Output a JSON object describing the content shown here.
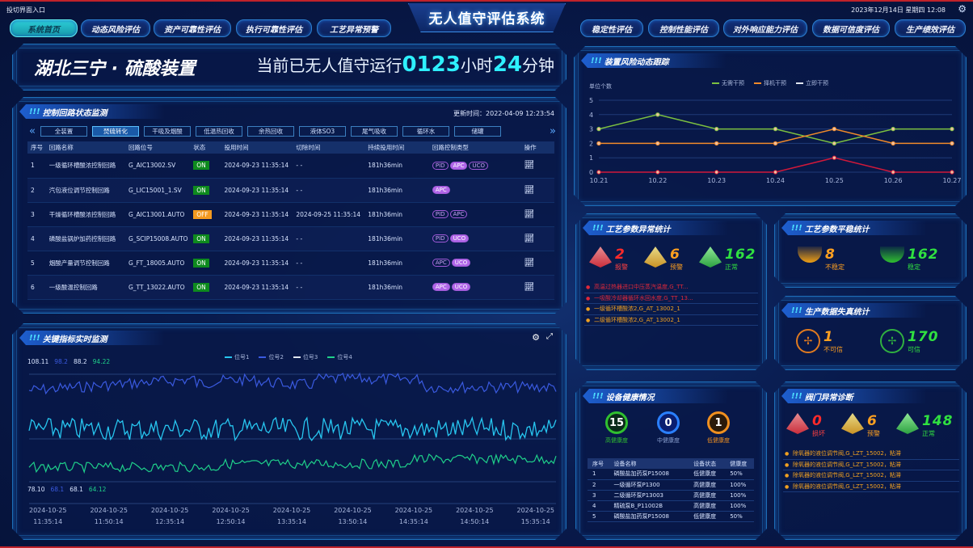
{
  "topbar": {
    "entry": "投切界面入口",
    "datetime": "2023年12月14日 星期四 12:08"
  },
  "title": "无人值守评估系统",
  "nav_left": [
    "系统首页",
    "动态风险评估",
    "资产可靠性评估",
    "执行可靠性评估",
    "工艺异常预警"
  ],
  "nav_right": [
    "稳定性评估",
    "控制性能评估",
    "对外响应能力评估",
    "数据可信度评估",
    "生产绩效评估"
  ],
  "banner": {
    "site": "湖北三宁 · 硫酸装置",
    "prefix": "当前已无人值守运行",
    "hours": "0123",
    "hours_unit": "小时",
    "minutes": "24",
    "minutes_unit": "分钟"
  },
  "loops": {
    "title": "控制回路状态监测",
    "updated": "更新时间：2022-04-09 12:23:54",
    "tabs": [
      "全装置",
      "焚硫转化",
      "干吸及烟酸",
      "低温热回收",
      "余热回收",
      "液体SO3",
      "尾气吸收",
      "循环水",
      "储罐"
    ],
    "active_tab": "焚硫转化",
    "columns": [
      "序号",
      "回路名称",
      "回路位号",
      "状态",
      "投用时间",
      "切除时间",
      "持续投用时间",
      "回路控制类型",
      "操作"
    ],
    "rows": [
      {
        "no": "1",
        "name": "一级循环槽酸浓控制回路",
        "tag": "G_AIC13002.SV",
        "status": "ON",
        "start": "2024-09-23 11:35:14",
        "cut": "- -",
        "dur": "181h36min",
        "types": [
          [
            "PID",
            0
          ],
          [
            "APC",
            1
          ],
          [
            "UCO",
            0
          ]
        ]
      },
      {
        "no": "2",
        "name": "汽包液位调节控制回路",
        "tag": "G_LIC15001_1.SV",
        "status": "ON",
        "start": "2024-09-23 11:35:14",
        "cut": "- -",
        "dur": "181h36min",
        "types": [
          [
            "APC",
            1
          ]
        ]
      },
      {
        "no": "3",
        "name": "干燥循环槽酸浓控制回路",
        "tag": "G_AIC13001.AUTO",
        "status": "OFF",
        "start": "2024-09-23 11:35:14",
        "cut": "2024-09-25  11:35:14",
        "dur": "181h36min",
        "types": [
          [
            "PID",
            0
          ],
          [
            "APC",
            0
          ]
        ]
      },
      {
        "no": "4",
        "name": "磷酸盐锅炉加药控制回路",
        "tag": "G_SCIP15008.AUTO",
        "status": "ON",
        "start": "2024-09-23 11:35:14",
        "cut": "- -",
        "dur": "181h36min",
        "types": [
          [
            "PID",
            0
          ],
          [
            "UCO",
            1
          ]
        ]
      },
      {
        "no": "5",
        "name": "烟酸产量调节控制回路",
        "tag": "G_FT_18005.AUTO",
        "status": "ON",
        "start": "2024-09-23 11:35:14",
        "cut": "- -",
        "dur": "181h36min",
        "types": [
          [
            "APC",
            0
          ],
          [
            "UCO",
            1
          ]
        ]
      },
      {
        "no": "6",
        "name": "一级酸温控制回路",
        "tag": "G_TT_13022.AUTO",
        "status": "ON",
        "start": "2024-09-23 11:35:14",
        "cut": "- -",
        "dur": "181h36min",
        "types": [
          [
            "APC",
            1
          ],
          [
            "UCO",
            1
          ]
        ]
      }
    ]
  },
  "key": {
    "title": "关键指标实时监测",
    "legend": [
      "位号1",
      "位号2",
      "位号3",
      "位号4"
    ],
    "colors": [
      "#27c6f0",
      "#3a5ae0",
      "#e0e6f0",
      "#1fd08a"
    ],
    "max": [
      "108.11",
      "98.2",
      "88.2",
      "94.22"
    ],
    "min": [
      "78.10",
      "68.1",
      "68.1",
      "64.12"
    ],
    "times": [
      [
        "2024-10-25",
        "11:35:14"
      ],
      [
        "2024-10-25",
        "11:50:14"
      ],
      [
        "2024-10-25",
        "12:35:14"
      ],
      [
        "2024-10-25",
        "12:50:14"
      ],
      [
        "2024-10-25",
        "13:35:14"
      ],
      [
        "2024-10-25",
        "13:50:14"
      ],
      [
        "2024-10-25",
        "14:35:14"
      ],
      [
        "2024-10-25",
        "14:50:14"
      ],
      [
        "2024-10-25",
        "15:35:14"
      ]
    ]
  },
  "chart_data": {
    "type": "line",
    "title": "装置风险动态跟踪",
    "ylabel": "单位个数",
    "categories": [
      "10.21",
      "10.22",
      "10.23",
      "10.24",
      "10.25",
      "10.26",
      "10.27"
    ],
    "ylim": [
      0,
      5
    ],
    "yticks": [
      0,
      1,
      2,
      3,
      4,
      5
    ],
    "grid": true,
    "legend": "top-center",
    "series": [
      {
        "name": "无需干预",
        "color": "#7cc040",
        "values": [
          3,
          4,
          3,
          3,
          2,
          3,
          3
        ]
      },
      {
        "name": "择机干预",
        "color": "#f08a2a",
        "values": [
          2,
          2,
          2,
          2,
          3,
          2,
          2
        ]
      },
      {
        "name": "立即干预",
        "color": "#d0183a",
        "values": [
          0,
          0,
          0,
          0,
          1,
          0,
          0
        ]
      }
    ]
  },
  "anomaly": {
    "title": "工艺参数异常统计",
    "alarm": "2",
    "alarm_label": "报警",
    "warn": "6",
    "warn_label": "预警",
    "normal": "162",
    "normal_label": "正常",
    "items": [
      {
        "text": "高温过热器进口中压蒸汽温度,G_TT...",
        "level": "red"
      },
      {
        "text": "一吸酸冷却器循环水回水度,G_TT_13...",
        "level": "red"
      },
      {
        "text": "一级循环槽酸浓2,G_AT_13002_1",
        "level": "orange"
      },
      {
        "text": "二级循环槽酸浓2,G_AT_13002_1",
        "level": "orange"
      }
    ]
  },
  "stability": {
    "title": "工艺参数平稳统计",
    "unstable": "8",
    "unstable_label": "不稳定",
    "stable": "162",
    "stable_label": "稳定"
  },
  "distortion": {
    "title": "生产数据失真统计",
    "untrusted": "1",
    "untrusted_label": "不可信",
    "trusted": "170",
    "trusted_label": "可信"
  },
  "health": {
    "title": "设备健康情况",
    "high": "15",
    "high_label": "高健康度",
    "mid": "0",
    "mid_label": "中健康度",
    "low": "1",
    "low_label": "低健康度",
    "columns": [
      "序号",
      "设备名称",
      "设备状态",
      "健康度"
    ],
    "rows": [
      [
        "1",
        "磷酸盐加药泵P15008",
        "低健康度",
        "50%"
      ],
      [
        "2",
        "一级循环泵P1300",
        "高健康度",
        "100%"
      ],
      [
        "3",
        "二级循环泵P13003",
        "高健康度",
        "100%"
      ],
      [
        "4",
        "精硫泵B_P11002B",
        "高健康度",
        "100%"
      ],
      [
        "5",
        "磷酸盐加药泵P15008",
        "低健康度",
        "50%"
      ]
    ]
  },
  "valve": {
    "title": "阀门异常诊断",
    "damaged": "0",
    "damaged_label": "损坏",
    "warn": "6",
    "warn_label": "预警",
    "normal": "148",
    "normal_label": "正常",
    "items": [
      "除氧器的液位调节阀,G_LZT_15002，粘滞",
      "除氧器的液位调节阀,G_LZT_15002，粘滞",
      "除氧器的液位调节阀,G_LZT_15002，粘滞",
      "除氧器的液位调节阀,G_LZT_15002，粘滞"
    ]
  }
}
